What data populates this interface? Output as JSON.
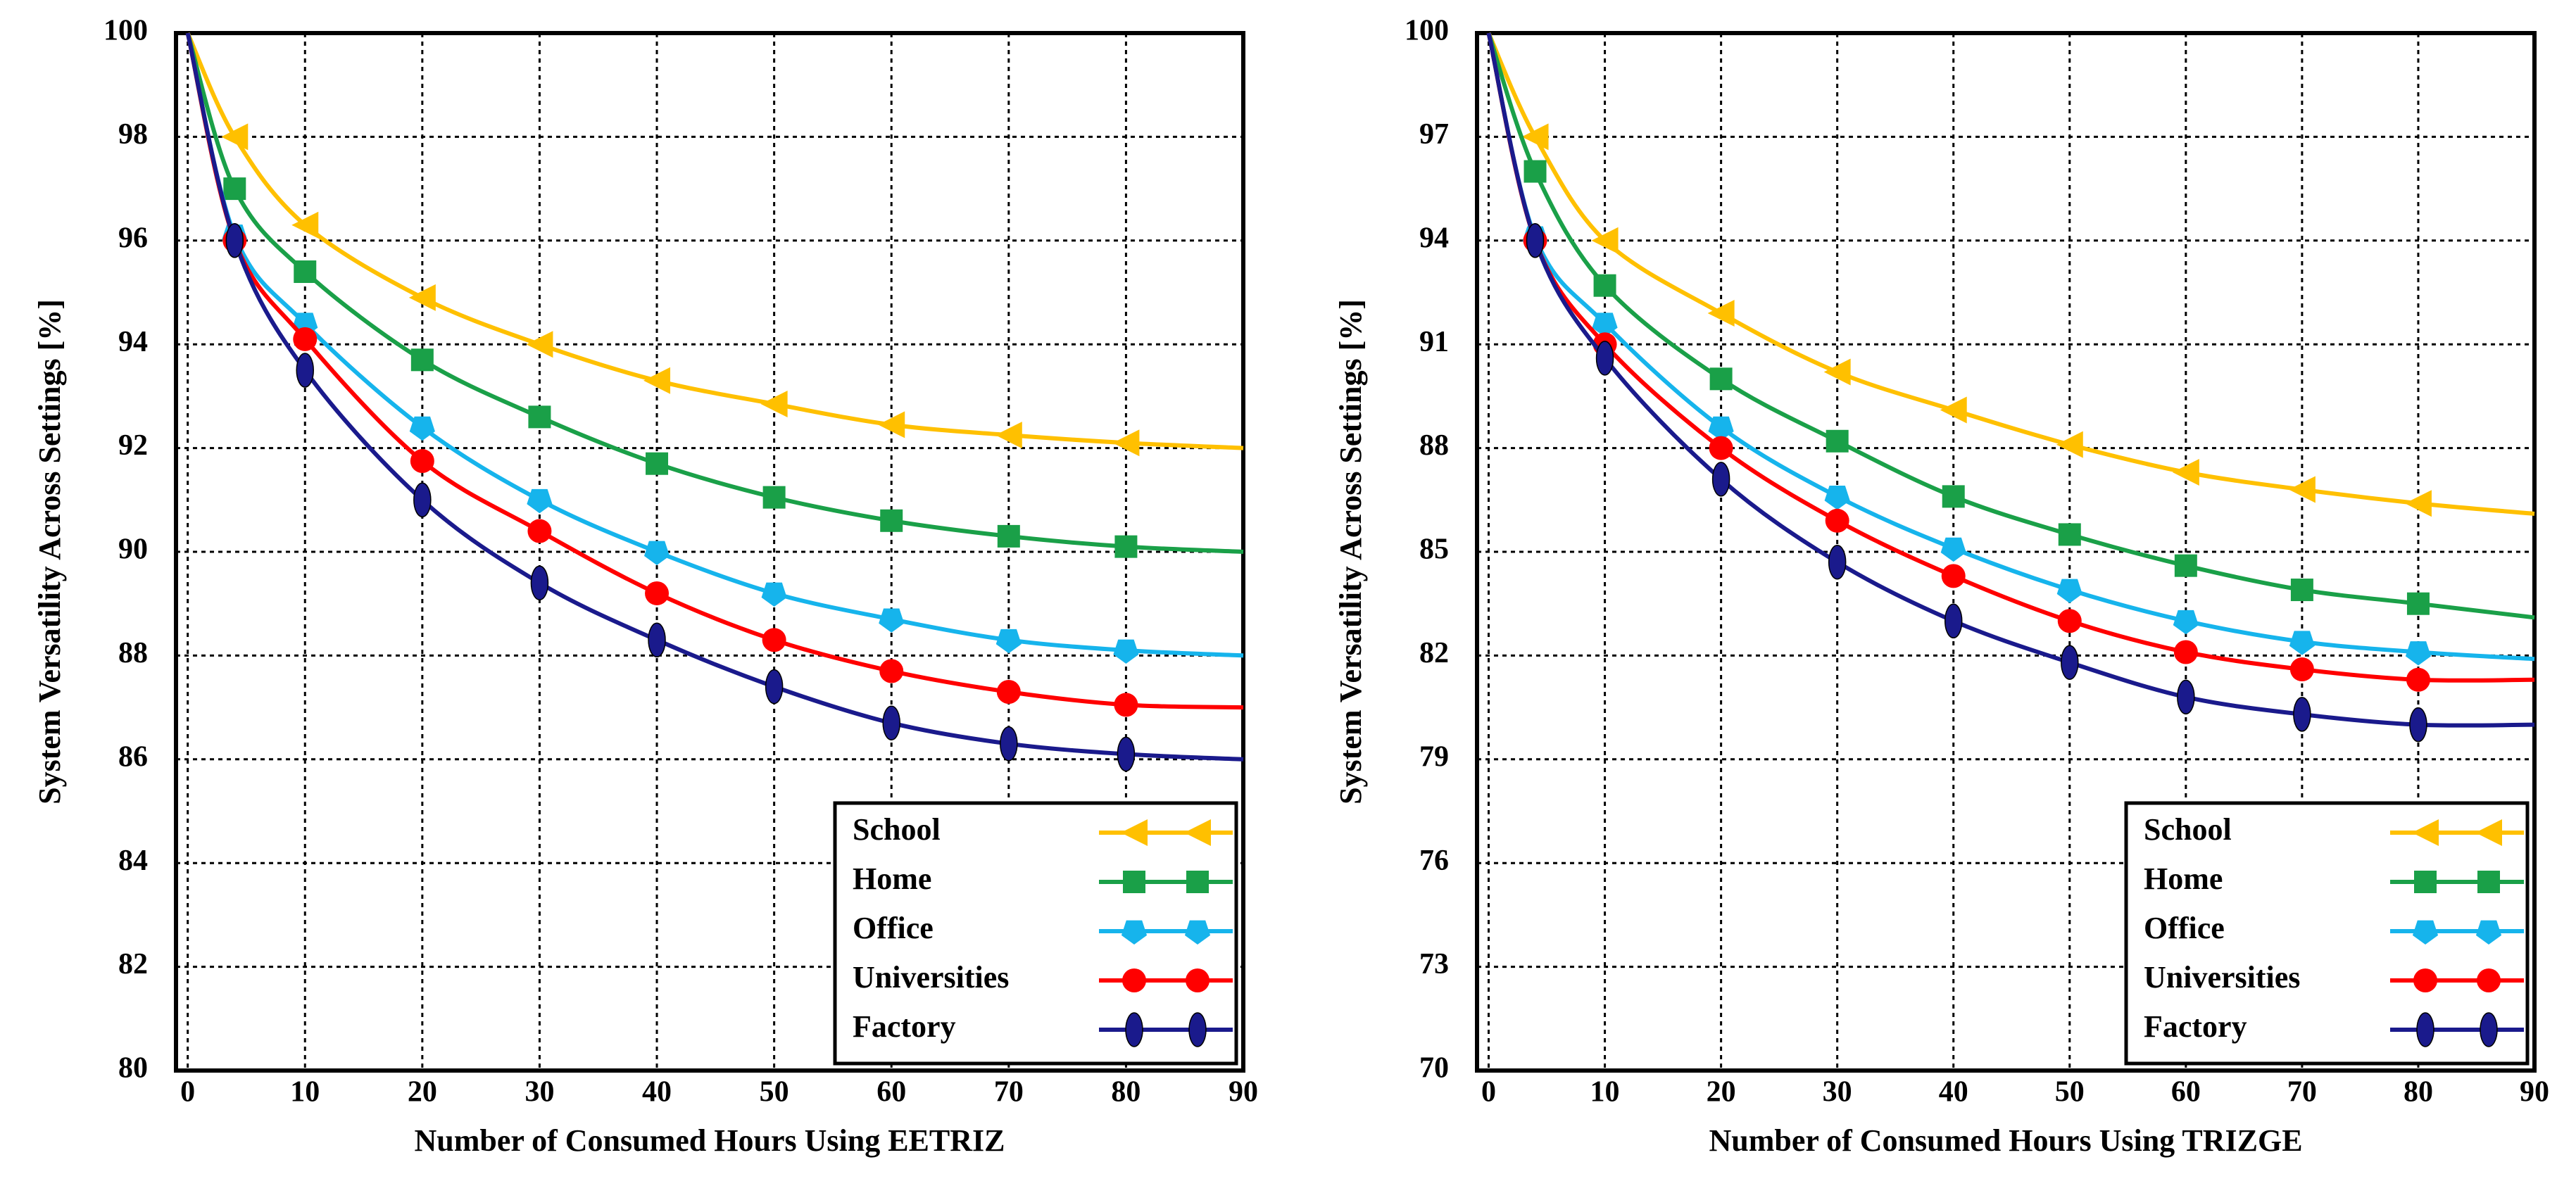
{
  "chart_data": [
    {
      "type": "line",
      "xlabel": "Number of Consumed Hours Using EETRIZ",
      "ylabel": "System Versatility Across Settings [%]",
      "x": [
        0,
        4,
        10,
        20,
        30,
        40,
        50,
        60,
        70,
        80,
        90
      ],
      "xlim": [
        -1,
        90
      ],
      "xticks": [
        0,
        10,
        20,
        30,
        40,
        50,
        60,
        70,
        80,
        90
      ],
      "ylim": [
        80,
        100
      ],
      "yticks": [
        80,
        82,
        84,
        86,
        88,
        90,
        92,
        94,
        96,
        98,
        100
      ],
      "grid": true,
      "legend": "lower right",
      "series": [
        {
          "name": "School",
          "color": "#ffc000",
          "marker": "triangle",
          "values": [
            100,
            98,
            96.3,
            94.9,
            94.0,
            93.3,
            92.85,
            92.45,
            92.25,
            92.1,
            92.0
          ]
        },
        {
          "name": "Home",
          "color": "#1aa048",
          "marker": "square",
          "values": [
            100,
            97.0,
            95.4,
            93.7,
            92.6,
            91.7,
            91.05,
            90.6,
            90.3,
            90.1,
            90.0
          ]
        },
        {
          "name": "Office",
          "color": "#16b4ec",
          "marker": "pentagon",
          "values": [
            100,
            96.1,
            94.4,
            92.4,
            91.0,
            90.0,
            89.2,
            88.7,
            88.3,
            88.1,
            88.0
          ]
        },
        {
          "name": "Universities",
          "color": "#ff0000",
          "marker": "circle",
          "values": [
            100,
            96.0,
            94.1,
            91.75,
            90.4,
            89.2,
            88.3,
            87.7,
            87.3,
            87.05,
            87.0
          ]
        },
        {
          "name": "Factory",
          "color": "#1a1a8c",
          "marker": "ellipse",
          "values": [
            100,
            96.0,
            93.5,
            91.0,
            89.4,
            88.3,
            87.4,
            86.7,
            86.3,
            86.1,
            86.0
          ]
        }
      ]
    },
    {
      "type": "line",
      "xlabel": "Number of Consumed Hours Using TRIZGE",
      "ylabel": "System Versatility Across Settings [%]",
      "x": [
        0,
        4,
        10,
        20,
        30,
        40,
        50,
        60,
        70,
        80,
        90
      ],
      "xlim": [
        -1,
        90
      ],
      "xticks": [
        0,
        10,
        20,
        30,
        40,
        50,
        60,
        70,
        80,
        90
      ],
      "ylim": [
        70,
        100
      ],
      "yticks": [
        70,
        73,
        76,
        79,
        82,
        85,
        88,
        91,
        94,
        97,
        100
      ],
      "grid": true,
      "legend": "lower right",
      "series": [
        {
          "name": "School",
          "color": "#ffc000",
          "marker": "triangle",
          "values": [
            100,
            97,
            94.0,
            91.9,
            90.2,
            89.1,
            88.1,
            87.3,
            86.8,
            86.4,
            86.1
          ]
        },
        {
          "name": "Home",
          "color": "#1aa048",
          "marker": "square",
          "values": [
            100,
            96,
            92.7,
            90.0,
            88.2,
            86.6,
            85.5,
            84.6,
            83.9,
            83.5,
            83.1
          ]
        },
        {
          "name": "Office",
          "color": "#16b4ec",
          "marker": "pentagon",
          "values": [
            100,
            94.1,
            91.6,
            88.6,
            86.6,
            85.1,
            83.9,
            83.0,
            82.4,
            82.1,
            81.9
          ]
        },
        {
          "name": "Universities",
          "color": "#ff0000",
          "marker": "circle",
          "values": [
            100,
            94.0,
            91.0,
            88.0,
            85.9,
            84.3,
            83.0,
            82.1,
            81.6,
            81.3,
            81.3
          ]
        },
        {
          "name": "Factory",
          "color": "#1a1a8c",
          "marker": "ellipse",
          "values": [
            100,
            94.0,
            90.6,
            87.1,
            84.7,
            83.0,
            81.8,
            80.8,
            80.3,
            80.0,
            80.0
          ]
        }
      ]
    }
  ]
}
